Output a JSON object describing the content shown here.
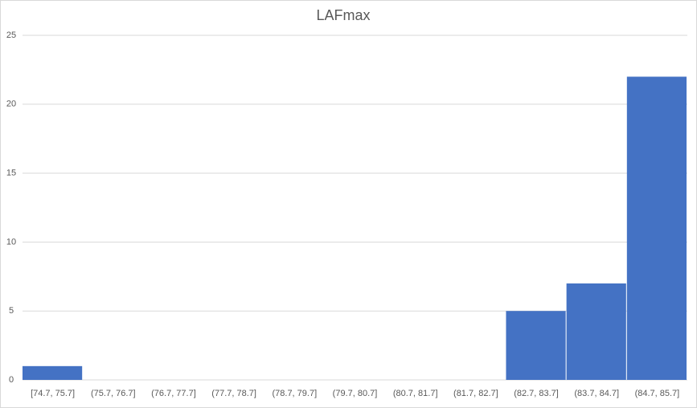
{
  "chart_data": {
    "type": "bar",
    "title": "LAFmax",
    "categories": [
      "[74.7, 75.7]",
      "(75.7, 76.7]",
      "(76.7, 77.7]",
      "(77.7, 78.7]",
      "(78.7, 79.7]",
      "(79.7, 80.7]",
      "(80.7, 81.7]",
      "(81.7, 82.7]",
      "(82.7, 83.7]",
      "(83.7, 84.7]",
      "(84.7, 85.7]"
    ],
    "values": [
      1,
      0,
      0,
      0,
      0,
      0,
      0,
      0,
      5,
      7,
      22
    ],
    "color": "#4472c4",
    "ylim": [
      0,
      25
    ],
    "yticks": [
      0,
      5,
      10,
      15,
      20,
      25
    ],
    "grid": true
  }
}
